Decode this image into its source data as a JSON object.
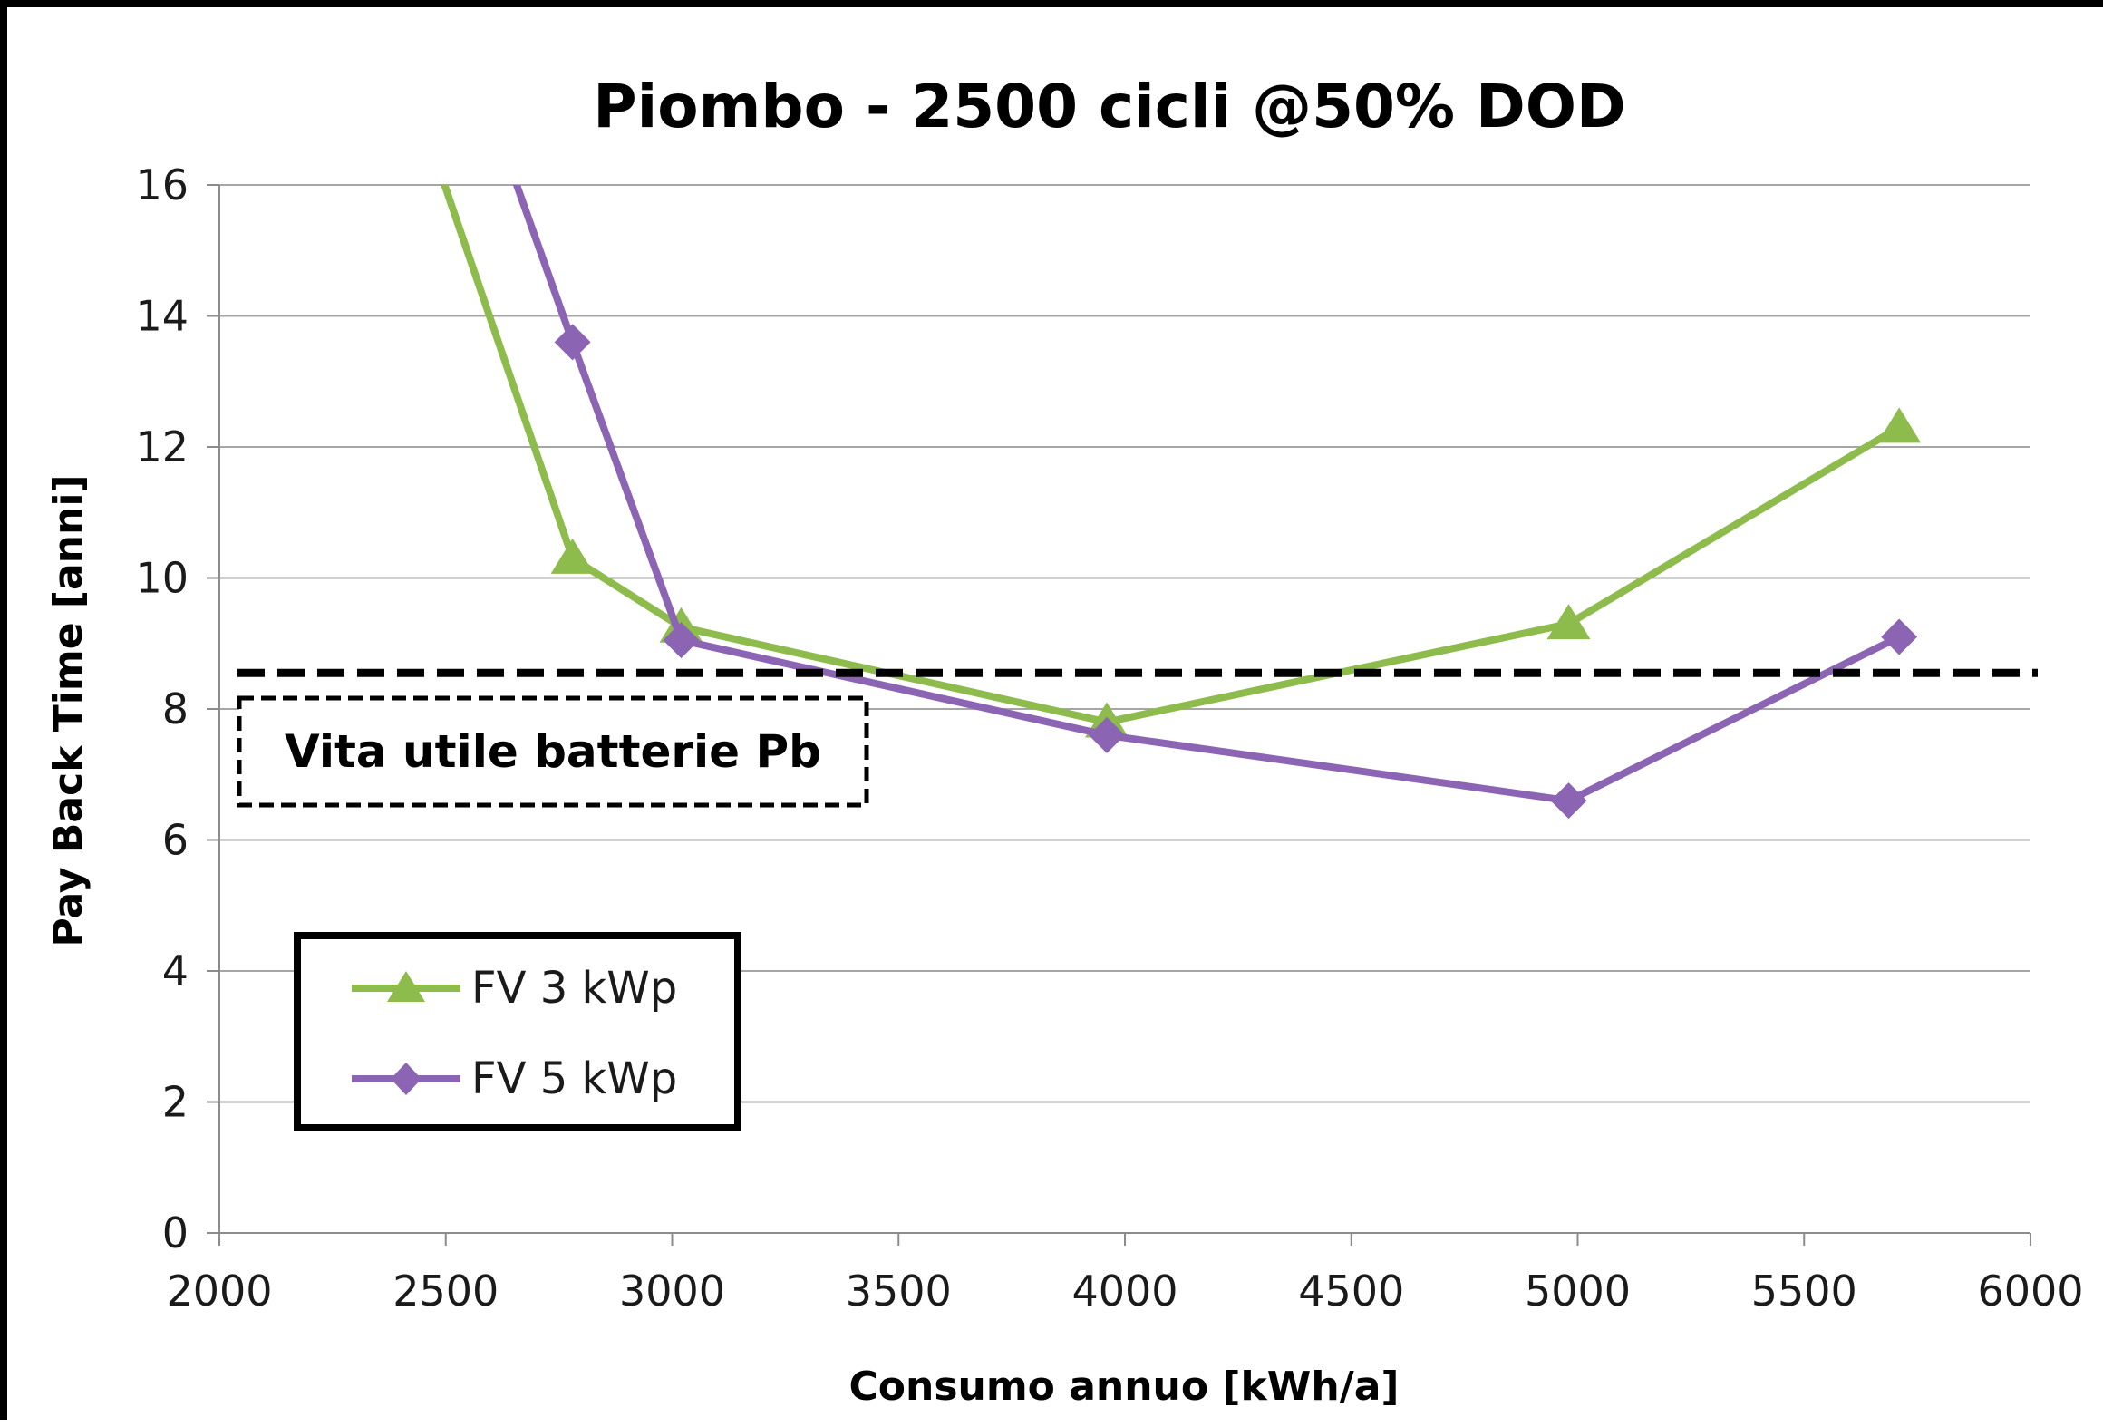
{
  "chart_data": {
    "type": "line",
    "title": "Piombo - 2500 cicli @50% DOD",
    "xlabel": "Consumo annuo [kWh/a]",
    "ylabel": "Pay Back Time [anni]",
    "xlim": [
      2000,
      6000
    ],
    "ylim": [
      0,
      16
    ],
    "x_ticks": [
      2000,
      2500,
      3000,
      3500,
      4000,
      4500,
      5000,
      5500,
      6000
    ],
    "y_ticks": [
      0,
      2,
      4,
      6,
      8,
      10,
      12,
      14,
      16
    ],
    "grid": "horizontal",
    "legend_position": "bottom-left",
    "series": [
      {
        "name": "FV 3 kWp",
        "color": "#8dbb4c",
        "marker": "triangle",
        "points": [
          [
            2200,
            22.0
          ],
          [
            2780,
            10.3
          ],
          [
            3020,
            9.25
          ],
          [
            3960,
            7.8
          ],
          [
            4980,
            9.3
          ],
          [
            5710,
            12.3
          ]
        ],
        "marked": [
          false,
          true,
          true,
          true,
          true,
          true
        ]
      },
      {
        "name": "FV 5 kWp",
        "color": "#8c64b4",
        "marker": "diamond",
        "points": [
          [
            2400,
            21.0
          ],
          [
            2780,
            13.6
          ],
          [
            3020,
            9.05
          ],
          [
            3960,
            7.6
          ],
          [
            4980,
            6.6
          ],
          [
            5710,
            9.1
          ]
        ],
        "marked": [
          false,
          true,
          true,
          true,
          true,
          true
        ]
      }
    ],
    "reference_line": {
      "y": 8.55,
      "style": "dashed",
      "color": "#000000",
      "label": "Vita utile batterie Pb"
    }
  }
}
